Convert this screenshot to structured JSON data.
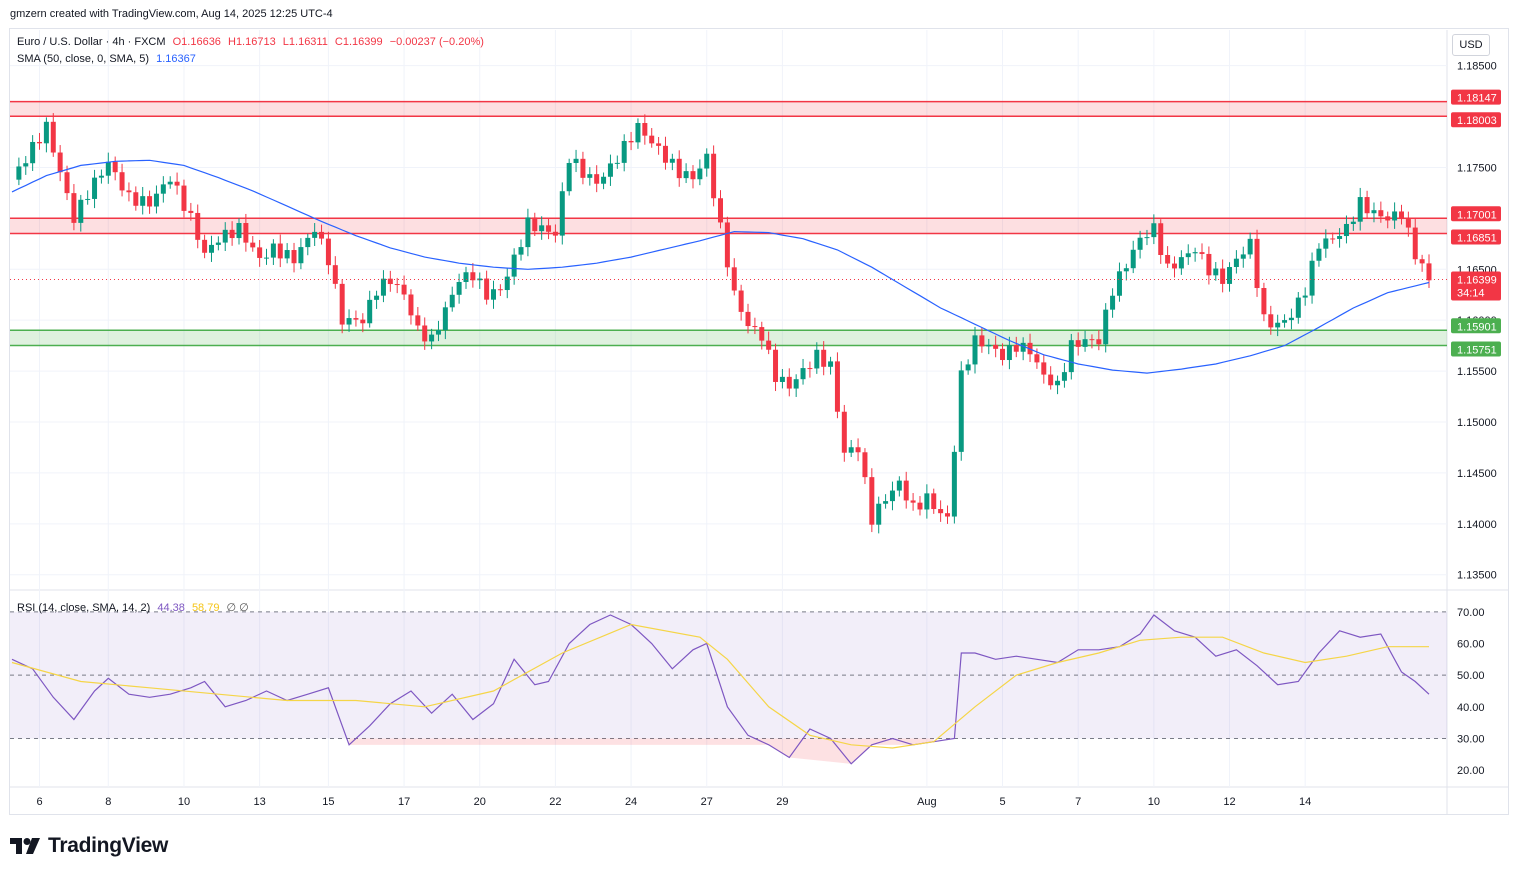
{
  "header": {
    "caption": "gmzern created with TradingView.com, Aug 14, 2025 12:25 UTC-4"
  },
  "legend": {
    "symbol": "Euro / U.S. Dollar · 4h · FXCM",
    "open": "O1.16636",
    "high": "H1.16713",
    "low": "L1.16311",
    "close": "C1.16399",
    "change": "−0.00237 (−0.20%)",
    "sma_label": "SMA (50, close, 0, SMA, 5)",
    "sma_value": "1.16367",
    "rsi_label": "RSI (14, close, SMA, 14, 2)",
    "rsi_value": "44.38",
    "rsi_sma_value": "58.79",
    "rsi_extra": "∅ ∅"
  },
  "currency": "USD",
  "footer": {
    "brand": "TradingView",
    "logo_icon": "tradingview-logo-icon"
  },
  "colors": {
    "up": "#089981",
    "down": "#f23645",
    "sma": "#2962ff",
    "rsi": "#7e57c2",
    "rsi_sma": "#f5d547",
    "resistance_zone": "#f23645",
    "support_zone": "#4caf50"
  },
  "chart_data": [
    {
      "type": "candlestick",
      "pair": "EURUSD",
      "timeframe": "4h",
      "ylim": [
        1.1335,
        1.1885
      ],
      "y_ticks": [
        "1.18500",
        "1.17500",
        "1.16500",
        "1.16000",
        "1.15500",
        "1.15000",
        "1.14500",
        "1.14000",
        "1.13500"
      ],
      "x_ticks": [
        "6",
        "8",
        "10",
        "13",
        "15",
        "17",
        "20",
        "22",
        "24",
        "27",
        "29",
        "Aug",
        "5",
        "7",
        "10",
        "12",
        "14"
      ],
      "x_tick_index": [
        4,
        14,
        25,
        36,
        46,
        57,
        68,
        79,
        90,
        101,
        112,
        133,
        144,
        155,
        166,
        177,
        188
      ],
      "price_labels": [
        "1.18147",
        "1.18003",
        "1.17001",
        "1.16851",
        "1.15901",
        "1.15751"
      ],
      "last_price": "1.16399",
      "countdown": "34:14",
      "zones": [
        {
          "kind": "resistance",
          "top": 1.18147,
          "bottom": 1.18003
        },
        {
          "kind": "resistance",
          "top": 1.17001,
          "bottom": 1.16851
        },
        {
          "kind": "support",
          "top": 1.15901,
          "bottom": 1.15751
        }
      ],
      "close_path": [
        [
          0,
          1.1738
        ],
        [
          5,
          1.179
        ],
        [
          7,
          1.1745
        ],
        [
          9,
          1.17
        ],
        [
          11,
          1.1725
        ],
        [
          14,
          1.1755
        ],
        [
          17,
          1.172
        ],
        [
          20,
          1.1715
        ],
        [
          23,
          1.174
        ],
        [
          26,
          1.17
        ],
        [
          28,
          1.1665
        ],
        [
          30,
          1.168
        ],
        [
          33,
          1.169
        ],
        [
          36,
          1.166
        ],
        [
          38,
          1.167
        ],
        [
          41,
          1.166
        ],
        [
          44,
          1.169
        ],
        [
          46,
          1.166
        ],
        [
          48,
          1.16
        ],
        [
          51,
          1.16
        ],
        [
          53,
          1.163
        ],
        [
          55,
          1.164
        ],
        [
          57,
          1.1625
        ],
        [
          59,
          1.159
        ],
        [
          61,
          1.158
        ],
        [
          63,
          1.161
        ],
        [
          65,
          1.164
        ],
        [
          67,
          1.1645
        ],
        [
          69,
          1.1625
        ],
        [
          71,
          1.163
        ],
        [
          73,
          1.166
        ],
        [
          75,
          1.1695
        ],
        [
          77,
          1.169
        ],
        [
          79,
          1.1685
        ],
        [
          81,
          1.176
        ],
        [
          83,
          1.1745
        ],
        [
          85,
          1.1735
        ],
        [
          87,
          1.175
        ],
        [
          89,
          1.177
        ],
        [
          91,
          1.179
        ],
        [
          93,
          1.1775
        ],
        [
          95,
          1.176
        ],
        [
          97,
          1.1745
        ],
        [
          99,
          1.174
        ],
        [
          101,
          1.176
        ],
        [
          103,
          1.169
        ],
        [
          105,
          1.1625
        ],
        [
          107,
          1.1595
        ],
        [
          109,
          1.1585
        ],
        [
          111,
          1.1545
        ],
        [
          113,
          1.1535
        ],
        [
          115,
          1.155
        ],
        [
          117,
          1.1565
        ],
        [
          119,
          1.1555
        ],
        [
          121,
          1.147
        ],
        [
          123,
          1.1475
        ],
        [
          125,
          1.1405
        ],
        [
          127,
          1.1425
        ],
        [
          129,
          1.144
        ],
        [
          131,
          1.1415
        ],
        [
          133,
          1.1425
        ],
        [
          135,
          1.141
        ],
        [
          136,
          1.1405
        ],
        [
          138,
          1.1545
        ],
        [
          140,
          1.158
        ],
        [
          142,
          1.1575
        ],
        [
          144,
          1.1565
        ],
        [
          146,
          1.1575
        ],
        [
          148,
          1.157
        ],
        [
          150,
          1.1545
        ],
        [
          152,
          1.1535
        ],
        [
          154,
          1.1575
        ],
        [
          156,
          1.158
        ],
        [
          158,
          1.158
        ],
        [
          160,
          1.163
        ],
        [
          162,
          1.1655
        ],
        [
          164,
          1.168
        ],
        [
          166,
          1.169
        ],
        [
          168,
          1.165
        ],
        [
          170,
          1.166
        ],
        [
          172,
          1.167
        ],
        [
          174,
          1.165
        ],
        [
          176,
          1.164
        ],
        [
          178,
          1.166
        ],
        [
          180,
          1.1675
        ],
        [
          182,
          1.16
        ],
        [
          184,
          1.1595
        ],
        [
          186,
          1.1605
        ],
        [
          188,
          1.163
        ],
        [
          190,
          1.1675
        ],
        [
          192,
          1.168
        ],
        [
          194,
          1.169
        ],
        [
          196,
          1.1715
        ],
        [
          198,
          1.1705
        ],
        [
          200,
          1.17
        ],
        [
          202,
          1.1705
        ],
        [
          204,
          1.1665
        ],
        [
          206,
          1.164
        ]
      ],
      "sma_path": [
        [
          0,
          1.1726
        ],
        [
          5,
          1.1742
        ],
        [
          10,
          1.1752
        ],
        [
          15,
          1.1756
        ],
        [
          20,
          1.1757
        ],
        [
          25,
          1.1752
        ],
        [
          30,
          1.174
        ],
        [
          35,
          1.1727
        ],
        [
          40,
          1.1712
        ],
        [
          45,
          1.1697
        ],
        [
          50,
          1.1683
        ],
        [
          55,
          1.1671
        ],
        [
          60,
          1.1662
        ],
        [
          65,
          1.1656
        ],
        [
          70,
          1.1652
        ],
        [
          75,
          1.165
        ],
        [
          80,
          1.1652
        ],
        [
          85,
          1.1656
        ],
        [
          90,
          1.1662
        ],
        [
          95,
          1.167
        ],
        [
          100,
          1.1678
        ],
        [
          105,
          1.1687
        ],
        [
          110,
          1.1686
        ],
        [
          115,
          1.168
        ],
        [
          120,
          1.1669
        ],
        [
          125,
          1.1652
        ],
        [
          130,
          1.1632
        ],
        [
          135,
          1.1612
        ],
        [
          140,
          1.1596
        ],
        [
          145,
          1.158
        ],
        [
          150,
          1.1566
        ],
        [
          155,
          1.1557
        ],
        [
          160,
          1.1551
        ],
        [
          165,
          1.1548
        ],
        [
          170,
          1.1552
        ],
        [
          175,
          1.1557
        ],
        [
          180,
          1.1565
        ],
        [
          185,
          1.1575
        ],
        [
          190,
          1.1593
        ],
        [
          195,
          1.1612
        ],
        [
          200,
          1.1627
        ],
        [
          206,
          1.1637
        ]
      ]
    },
    {
      "type": "line",
      "name": "RSI",
      "ylim": [
        15,
        75
      ],
      "y_ticks": [
        "70.00",
        "60.00",
        "50.00",
        "40.00",
        "30.00",
        "20.00"
      ],
      "levels": [
        70,
        50,
        30
      ],
      "series": [
        {
          "name": "RSI",
          "x": [
            0,
            3,
            6,
            9,
            12,
            14,
            17,
            20,
            23,
            26,
            28,
            31,
            34,
            37,
            40,
            43,
            46,
            49,
            52,
            55,
            58,
            61,
            64,
            67,
            70,
            73,
            76,
            78,
            81,
            84,
            87,
            90,
            93,
            96,
            99,
            101,
            104,
            107,
            110,
            113,
            116,
            119,
            122,
            125,
            128,
            131,
            134,
            137,
            138,
            140,
            143,
            146,
            149,
            152,
            155,
            158,
            161,
            164,
            166,
            169,
            172,
            175,
            178,
            181,
            184,
            187,
            190,
            193,
            196,
            199,
            202,
            204,
            206
          ],
          "values": [
            55,
            52,
            43,
            36,
            45,
            49,
            44,
            43,
            44,
            46,
            48,
            40,
            42,
            45,
            42,
            44,
            46,
            28,
            34,
            41,
            45,
            38,
            44,
            36,
            41,
            55,
            47,
            48,
            60,
            66,
            69,
            66,
            60,
            52,
            58,
            60,
            40,
            31,
            28,
            24,
            33,
            30,
            22,
            28,
            30,
            28,
            29,
            30,
            57,
            57,
            55,
            56,
            55,
            54,
            58,
            58,
            59,
            63,
            69,
            64,
            62,
            56,
            58,
            53,
            47,
            48,
            57,
            64,
            62,
            63,
            51,
            48,
            44
          ]
        },
        {
          "name": "RSI-based MA",
          "x": [
            0,
            10,
            20,
            30,
            40,
            50,
            60,
            70,
            80,
            90,
            100,
            104,
            110,
            116,
            122,
            128,
            134,
            140,
            146,
            152,
            158,
            164,
            170,
            176,
            182,
            188,
            194,
            200,
            206
          ],
          "values": [
            54,
            48,
            46,
            44,
            42,
            42,
            40,
            45,
            57,
            66,
            62,
            55,
            40,
            31,
            28,
            27,
            29,
            40,
            50,
            54,
            57,
            61,
            62,
            62,
            57,
            54,
            56,
            59,
            59
          ]
        }
      ]
    }
  ]
}
